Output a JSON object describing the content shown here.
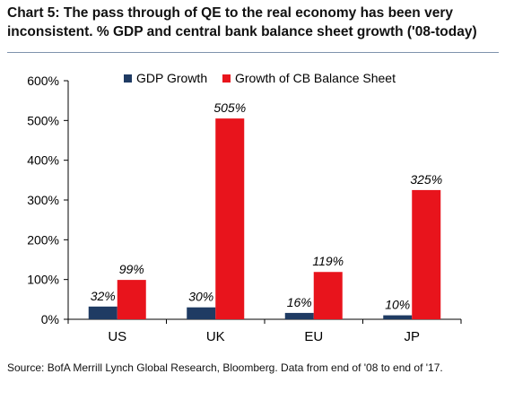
{
  "header": {
    "title": "Chart 5: The pass through of QE to the real economy has been very inconsistent. % GDP and central bank balance sheet growth ('08-today)"
  },
  "footer": {
    "source": "Source: BofA Merrill Lynch Global Research, Bloomberg. Data from end of '08 to end of '17."
  },
  "colors": {
    "gdp": "#1f3b63",
    "cb": "#e8141c"
  },
  "chart_data": {
    "type": "bar",
    "title": "Chart 5: The pass through of QE to the real economy has been very inconsistent. % GDP and central bank balance sheet growth ('08-today)",
    "categories": [
      "US",
      "UK",
      "EU",
      "JP"
    ],
    "series": [
      {
        "name": "GDP Growth",
        "values": [
          32,
          30,
          16,
          10
        ],
        "labels": [
          "32%",
          "30%",
          "16%",
          "10%"
        ]
      },
      {
        "name": "Growth of CB Balance Sheet",
        "values": [
          99,
          505,
          119,
          325
        ],
        "labels": [
          "99%",
          "505%",
          "119%",
          "325%"
        ]
      }
    ],
    "yticks": [
      "0%",
      "100%",
      "200%",
      "300%",
      "400%",
      "500%",
      "600%"
    ],
    "ylim": [
      0,
      600
    ],
    "xlabel": "",
    "ylabel": "",
    "grid": false,
    "legend_position": "top"
  }
}
